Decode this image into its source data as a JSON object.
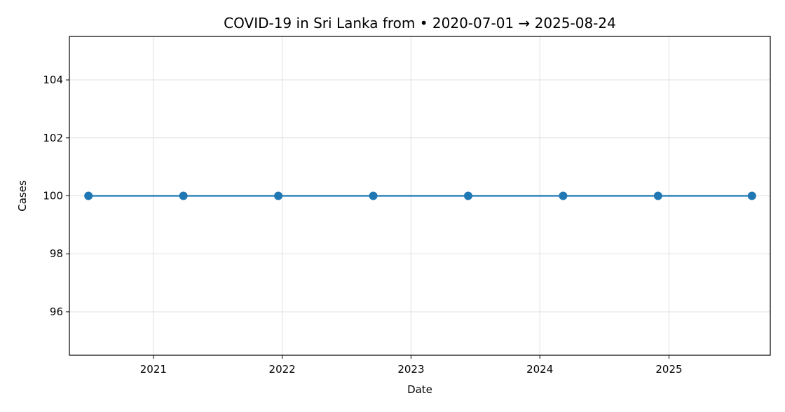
{
  "chart_data": {
    "type": "line",
    "title": "COVID-19 in Sri Lanka from • 2020-07-01 → 2025-08-24",
    "xlabel": "Date",
    "ylabel": "Cases",
    "x_axis": "date",
    "xlim": [
      "2020-05-08",
      "2025-10-15"
    ],
    "ylim": [
      94.5,
      105.5
    ],
    "x_ticks": [
      "2021",
      "2022",
      "2023",
      "2024",
      "2025"
    ],
    "y_ticks": [
      "96",
      "98",
      "100",
      "102",
      "104"
    ],
    "grid": true,
    "line_color": "#1f77b4",
    "series": [
      {
        "x": [
          "2020-07-01",
          "2021-03-27",
          "2021-12-21",
          "2022-09-16",
          "2023-06-12",
          "2024-03-07",
          "2024-12-01",
          "2025-08-24"
        ],
        "values": [
          100,
          100,
          100,
          100,
          100,
          100,
          100,
          100
        ]
      }
    ]
  }
}
